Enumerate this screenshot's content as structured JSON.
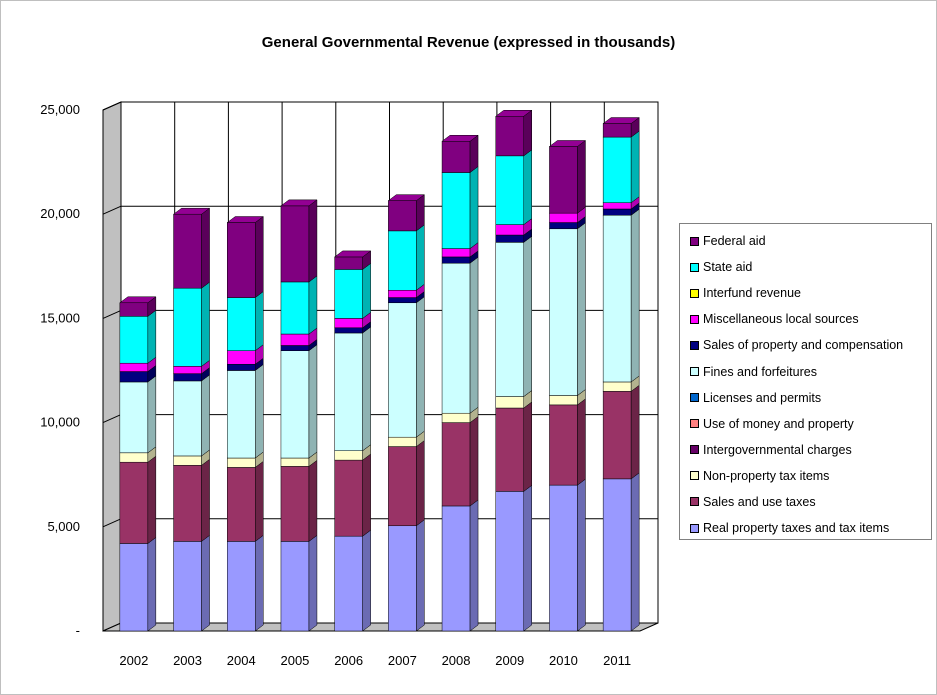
{
  "chart_data": {
    "type": "bar",
    "stacked": true,
    "title": "General Governmental Revenue (expressed in thousands)",
    "xlabel": "",
    "ylabel": "",
    "ylim": [
      0,
      25000
    ],
    "yticks": [
      "-",
      "5,000",
      "10,000",
      "15,000",
      "20,000",
      "25,000"
    ],
    "categories": [
      "2002",
      "2003",
      "2004",
      "2005",
      "2006",
      "2007",
      "2008",
      "2009",
      "2010",
      "2011"
    ],
    "grid": true,
    "legend_position": "right",
    "series": [
      {
        "name": "Real property taxes and tax items",
        "color": "#9999ff",
        "values": [
          4200,
          4300,
          4300,
          4300,
          4550,
          5050,
          6000,
          6700,
          7000,
          7300
        ]
      },
      {
        "name": "Sales and use taxes",
        "color": "#993366",
        "values": [
          3900,
          3650,
          3550,
          3600,
          3650,
          3800,
          4000,
          4000,
          3850,
          4200
        ]
      },
      {
        "name": "Non-property tax items",
        "color": "#ffffcc",
        "values": [
          450,
          450,
          450,
          400,
          450,
          450,
          450,
          550,
          450,
          450
        ]
      },
      {
        "name": "Intergovernmental charges",
        "color": "#660066",
        "values": [
          0,
          0,
          0,
          0,
          0,
          0,
          0,
          0,
          0,
          0
        ]
      },
      {
        "name": "Use of money and property",
        "color": "#ff8080",
        "values": [
          0,
          0,
          0,
          0,
          0,
          0,
          0,
          0,
          0,
          0
        ]
      },
      {
        "name": "Licenses and permits",
        "color": "#0066cc",
        "values": [
          0,
          0,
          0,
          0,
          0,
          0,
          0,
          0,
          0,
          0
        ]
      },
      {
        "name": "Fines and forfeitures",
        "color": "#ccffff",
        "values": [
          3400,
          3600,
          4200,
          5150,
          5650,
          6450,
          7200,
          7400,
          8000,
          8000
        ]
      },
      {
        "name": "Sales of property and compensation",
        "color": "#000080",
        "values": [
          500,
          350,
          300,
          250,
          250,
          250,
          300,
          350,
          300,
          300
        ]
      },
      {
        "name": "Miscellaneous local sources",
        "color": "#ff00ff",
        "values": [
          400,
          350,
          650,
          550,
          450,
          350,
          400,
          500,
          450,
          300
        ]
      },
      {
        "name": "Interfund revenue",
        "color": "#ffff00",
        "values": [
          0,
          0,
          0,
          0,
          0,
          0,
          0,
          0,
          0,
          0
        ]
      },
      {
        "name": "State aid",
        "color": "#00ffff",
        "values": [
          2250,
          3750,
          2550,
          2500,
          2350,
          2850,
          3650,
          3300,
          0,
          3150
        ]
      },
      {
        "name": "Federal aid",
        "color": "#800080",
        "values": [
          650,
          3550,
          3600,
          3650,
          600,
          1450,
          1500,
          1900,
          3200,
          650
        ]
      }
    ]
  }
}
